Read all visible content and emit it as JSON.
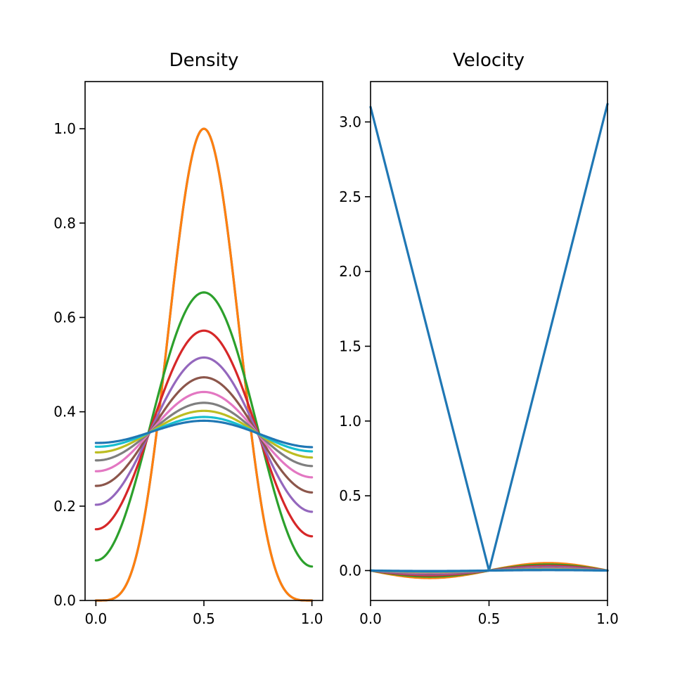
{
  "chart_data": [
    {
      "type": "line",
      "title": "Density",
      "xlabel": "",
      "ylabel": "",
      "xlim": [
        -0.05,
        1.05
      ],
      "ylim": [
        0.0,
        1.1
      ],
      "xticks": [
        "0.0",
        "0.5",
        "1.0"
      ],
      "xtick_values": [
        0.0,
        0.5,
        1.0
      ],
      "yticks": [
        "0.0",
        "0.2",
        "0.4",
        "0.6",
        "0.8",
        "1.0"
      ],
      "ytick_values": [
        0.0,
        0.2,
        0.4,
        0.6,
        0.8,
        1.0
      ],
      "grid": false,
      "series": [
        {
          "color": "#1f77b4",
          "profile": "initial-bump",
          "peak": 1.0,
          "edge_left": 0.0,
          "edge_right": 0.0
        },
        {
          "color": "#ff7f0e",
          "profile": "initial-bump",
          "peak": 1.0,
          "edge_left": 0.0,
          "edge_right": 0.0
        },
        {
          "color": "#2ca02c",
          "profile": "smoothed",
          "peak": 0.653,
          "edge_left": 0.085,
          "edge_right": 0.072
        },
        {
          "color": "#d62728",
          "profile": "smoothed",
          "peak": 0.572,
          "edge_left": 0.151,
          "edge_right": 0.136
        },
        {
          "color": "#9467bd",
          "profile": "smoothed",
          "peak": 0.515,
          "edge_left": 0.203,
          "edge_right": 0.188
        },
        {
          "color": "#8c564b",
          "profile": "smoothed",
          "peak": 0.473,
          "edge_left": 0.243,
          "edge_right": 0.229
        },
        {
          "color": "#e377c2",
          "profile": "smoothed",
          "peak": 0.442,
          "edge_left": 0.274,
          "edge_right": 0.261
        },
        {
          "color": "#7f7f7f",
          "profile": "smoothed",
          "peak": 0.419,
          "edge_left": 0.297,
          "edge_right": 0.285
        },
        {
          "color": "#bcbd22",
          "profile": "smoothed",
          "peak": 0.402,
          "edge_left": 0.314,
          "edge_right": 0.303
        },
        {
          "color": "#17becf",
          "profile": "smoothed",
          "peak": 0.389,
          "edge_left": 0.326,
          "edge_right": 0.316
        },
        {
          "color": "#1f77b4",
          "profile": "smoothed",
          "peak": 0.381,
          "edge_left": 0.334,
          "edge_right": 0.325
        }
      ]
    },
    {
      "type": "line",
      "title": "Velocity",
      "xlabel": "",
      "ylabel": "",
      "xlim": [
        0.0,
        1.0
      ],
      "ylim": [
        -0.2,
        3.27
      ],
      "xticks": [
        "0.0",
        "0.5",
        "1.0"
      ],
      "xtick_values": [
        0.0,
        0.5,
        1.0
      ],
      "yticks": [
        "0.0",
        "0.5",
        "1.0",
        "1.5",
        "2.0",
        "2.5",
        "3.0"
      ],
      "ytick_values": [
        0.0,
        0.5,
        1.0,
        1.5,
        2.0,
        2.5,
        3.0
      ],
      "grid": false,
      "series": [
        {
          "color": "#1f77b4",
          "x": [
            0.0,
            0.5,
            1.0
          ],
          "y": [
            3.1,
            0.0,
            3.12
          ]
        },
        {
          "color": "#ff7f0e",
          "shape": "antisymmetric-sine",
          "amplitude": 0.05
        },
        {
          "color": "#2ca02c",
          "shape": "antisymmetric-sine",
          "amplitude": 0.04
        },
        {
          "color": "#d62728",
          "shape": "antisymmetric-sine",
          "amplitude": 0.032
        },
        {
          "color": "#9467bd",
          "shape": "antisymmetric-sine",
          "amplitude": 0.025
        },
        {
          "color": "#8c564b",
          "shape": "antisymmetric-sine",
          "amplitude": 0.019
        },
        {
          "color": "#e377c2",
          "shape": "antisymmetric-sine",
          "amplitude": 0.014
        },
        {
          "color": "#7f7f7f",
          "shape": "antisymmetric-sine",
          "amplitude": 0.01
        },
        {
          "color": "#bcbd22",
          "shape": "antisymmetric-sine",
          "amplitude": 0.007
        },
        {
          "color": "#17becf",
          "shape": "antisymmetric-sine",
          "amplitude": 0.005
        },
        {
          "color": "#1f77b4",
          "shape": "antisymmetric-sine",
          "amplitude": 0.003
        }
      ]
    }
  ]
}
